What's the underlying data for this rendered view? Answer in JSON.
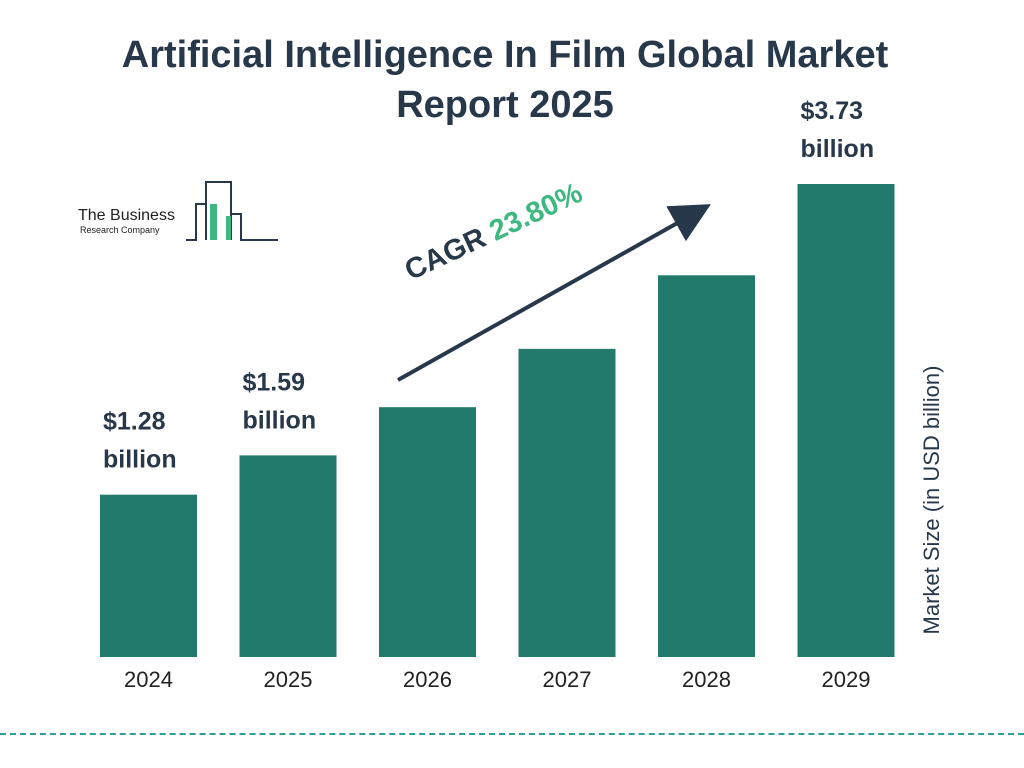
{
  "title": "Artificial Intelligence In Film Global Market Report 2025",
  "logo": {
    "line1": "The Business",
    "line2": "Research Company"
  },
  "cagr": {
    "label": "CAGR",
    "value": "23.80%"
  },
  "chart_data": {
    "type": "bar",
    "title": "Artificial Intelligence In Film Global Market Report 2025",
    "categories": [
      "2024",
      "2025",
      "2026",
      "2027",
      "2028",
      "2029"
    ],
    "values": [
      1.28,
      1.59,
      1.97,
      2.43,
      3.01,
      3.73
    ],
    "value_labels": [
      [
        "$1.28",
        "billion"
      ],
      [
        "$1.59",
        "billion"
      ],
      null,
      null,
      null,
      [
        "$3.73",
        "billion"
      ]
    ],
    "xlabel": "",
    "ylabel": "Market Size (in USD billion)",
    "ylim": [
      0,
      3.73
    ],
    "grid": false,
    "bar_color": "#217a6b"
  }
}
